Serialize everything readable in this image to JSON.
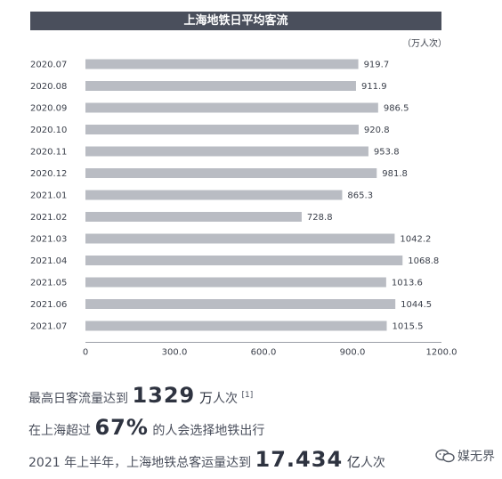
{
  "header": {
    "title": "上海地铁日平均客流",
    "unit": "（万人次）"
  },
  "chart_data": {
    "type": "bar",
    "orientation": "horizontal",
    "title": "上海地铁日平均客流",
    "xlabel": "",
    "ylabel": "",
    "unit": "（万人次）",
    "categories": [
      "2020.07",
      "2020.08",
      "2020.09",
      "2020.10",
      "2020.11",
      "2020.12",
      "2021.01",
      "2021.02",
      "2021.03",
      "2021.04",
      "2021.05",
      "2021.06",
      "2021.07"
    ],
    "values": [
      919.7,
      911.9,
      986.5,
      920.8,
      953.8,
      981.8,
      865.3,
      728.8,
      1042.2,
      1068.8,
      1013.6,
      1044.5,
      1015.5
    ],
    "value_labels": [
      "919.7",
      "911.9",
      "986.5",
      "920.8",
      "953.8",
      "981.8",
      "865.3",
      "728.8",
      "1042.2",
      "1068.8",
      "1013.6",
      "1044.5",
      "1015.5"
    ],
    "xlim": [
      0,
      1200
    ],
    "xticks": [
      0,
      300,
      600,
      900,
      1200
    ],
    "xtick_labels": [
      "0",
      "300.0",
      "600.0",
      "900.0",
      "1200.0"
    ],
    "grid": false,
    "legend": "none",
    "bar_color": "#b9bcc3"
  },
  "footer": {
    "line1": {
      "pre": "最高日客流量达到 ",
      "big": "1329",
      "mid": " 万",
      "post": "人次",
      "note": "[1]"
    },
    "line2": {
      "pre": "在上海超过 ",
      "big": "67%",
      "post": " 的人会选择地铁出行"
    },
    "line3": {
      "pre": "2021 年上半年，上海地铁总客运量达到 ",
      "big": "17.434",
      "mid": " 亿",
      "post": "人次"
    }
  },
  "watermark": {
    "text": "媒无界",
    "icon": "wechat-icon"
  }
}
